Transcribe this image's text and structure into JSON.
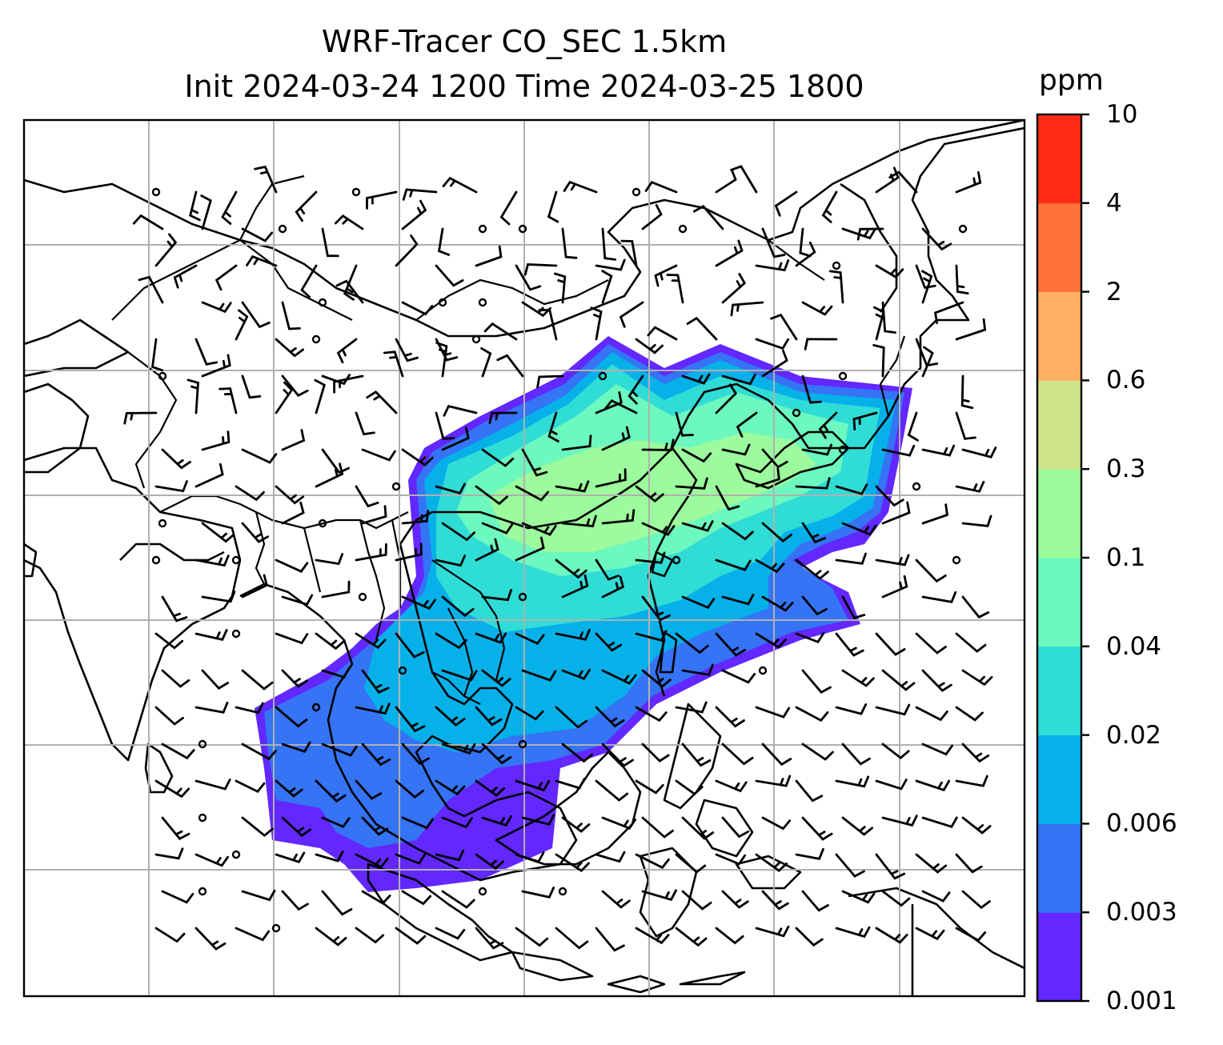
{
  "chart_data": {
    "type": "heatmap",
    "title": "WRF-Tracer CO_SEC 1.5km",
    "subtitle": "Init 2024-03-24 1200 Time 2024-03-25 1800",
    "colorbar": {
      "unit": "ppm",
      "levels": [
        "0.001",
        "0.003",
        "0.006",
        "0.02",
        "0.04",
        "0.1",
        "0.3",
        "0.6",
        "2",
        "4",
        "10"
      ],
      "colors": [
        "#6228ff",
        "#3474f5",
        "#06b1ea",
        "#30dcd6",
        "#6cf8bf",
        "#9cfb9c",
        "#d0e48a",
        "#ffb060",
        "#ff733b",
        "#ff2d16"
      ]
    },
    "grid": true,
    "overlays": [
      "coastlines",
      "country borders",
      "wind barbs"
    ]
  }
}
